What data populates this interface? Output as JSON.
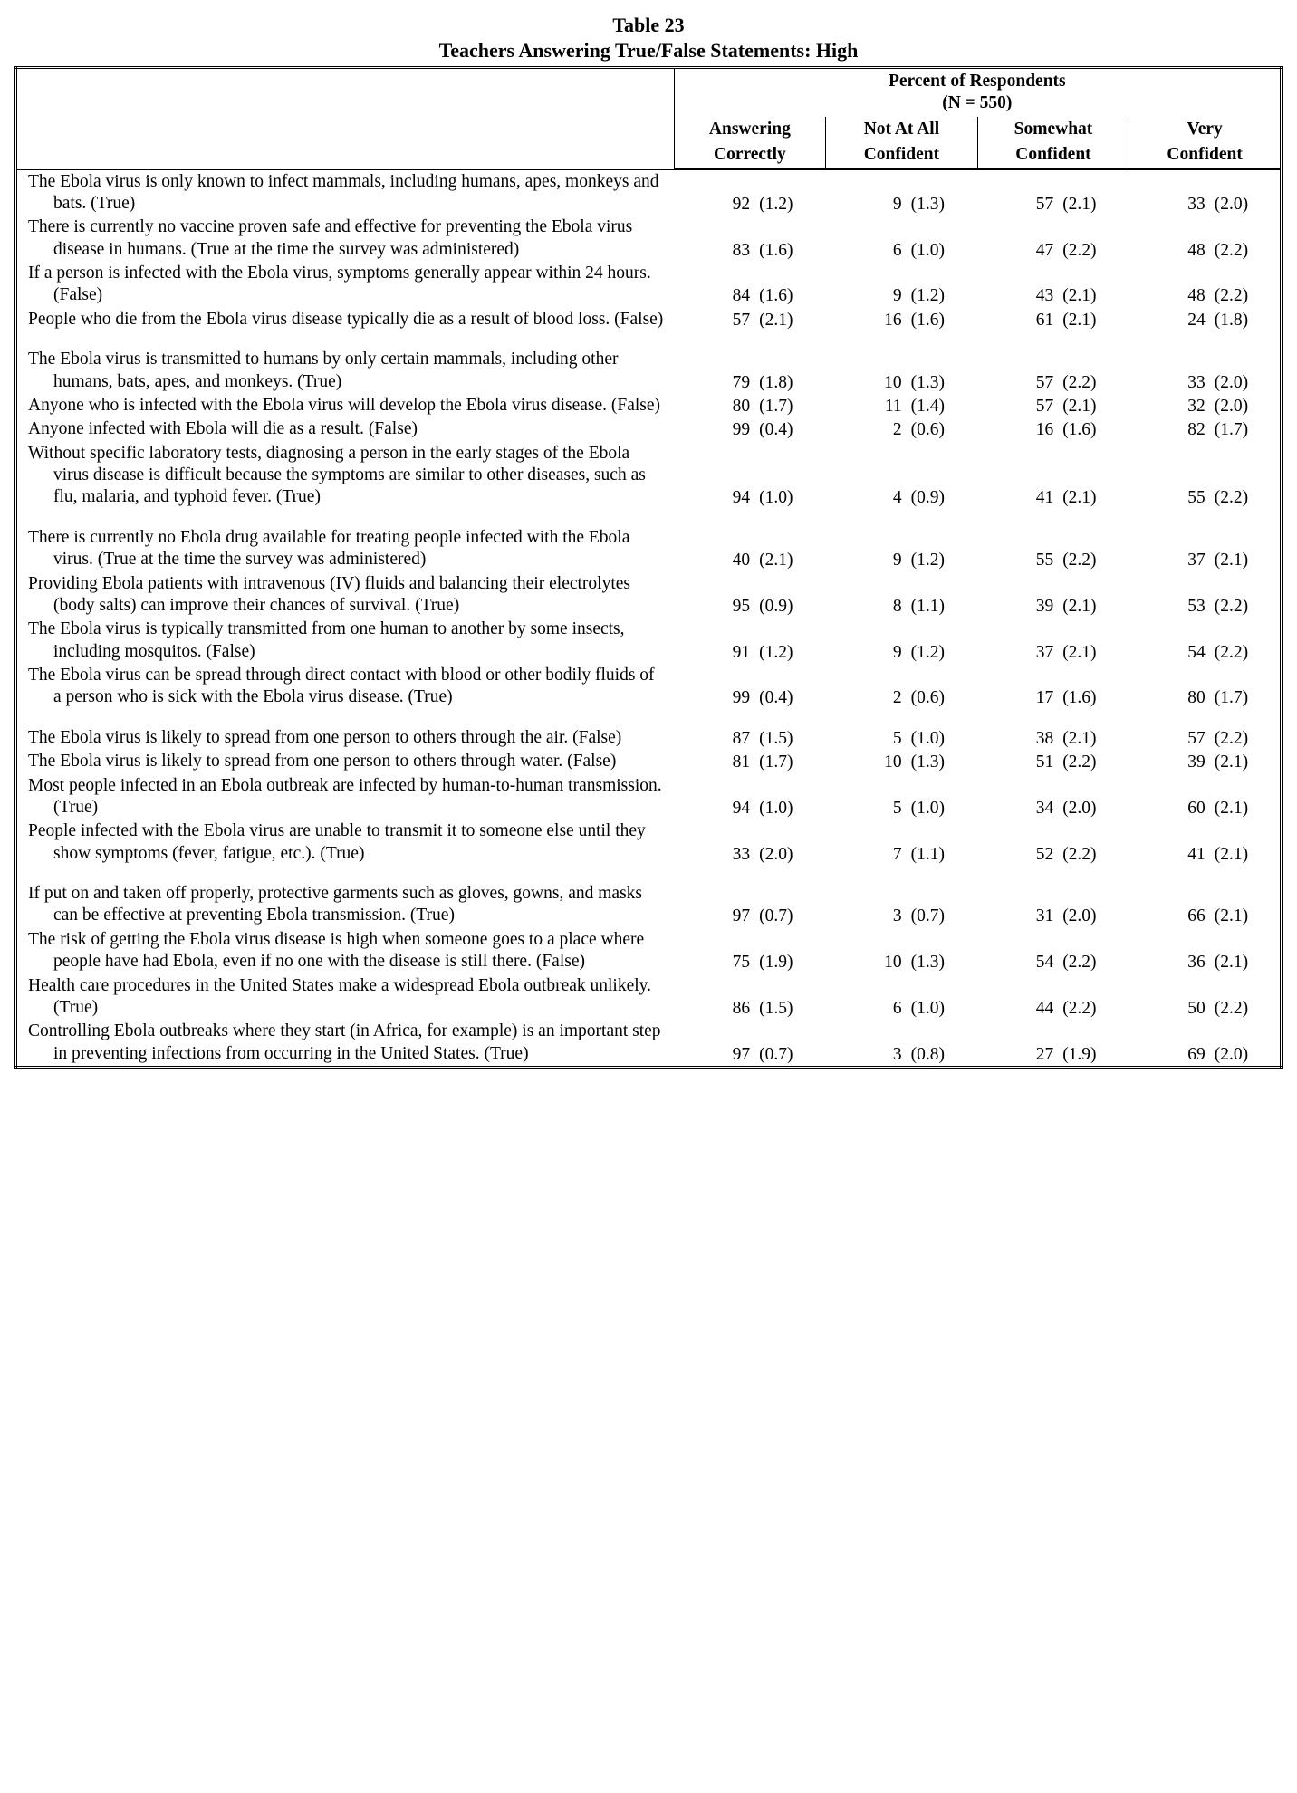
{
  "table_number": "Table 23",
  "title": "Teachers Answering True/False Statements: High",
  "super_header": "Percent of Respondents",
  "n_label": "(N = 550)",
  "columns": [
    {
      "l1": "Answering",
      "l2": "Correctly"
    },
    {
      "l1": "Not At All",
      "l2": "Confident"
    },
    {
      "l1": "Somewhat",
      "l2": "Confident"
    },
    {
      "l1": "Very",
      "l2": "Confident"
    }
  ],
  "groups": [
    [
      {
        "stmt": "The Ebola virus is only known to infect mammals, including humans, apes, monkeys and bats.  (True)",
        "vals": [
          {
            "v": "92",
            "se": "(1.2)"
          },
          {
            "v": "9",
            "se": "(1.3)"
          },
          {
            "v": "57",
            "se": "(2.1)"
          },
          {
            "v": "33",
            "se": "(2.0)"
          }
        ]
      },
      {
        "stmt": "There is currently no vaccine proven safe and effective for preventing the Ebola virus disease in humans.  (True at the time the survey was administered)",
        "vals": [
          {
            "v": "83",
            "se": "(1.6)"
          },
          {
            "v": "6",
            "se": "(1.0)"
          },
          {
            "v": "47",
            "se": "(2.2)"
          },
          {
            "v": "48",
            "se": "(2.2)"
          }
        ]
      },
      {
        "stmt": "If a person is infected with the Ebola virus, symptoms generally appear within 24 hours.  (False)",
        "vals": [
          {
            "v": "84",
            "se": "(1.6)"
          },
          {
            "v": "9",
            "se": "(1.2)"
          },
          {
            "v": "43",
            "se": "(2.1)"
          },
          {
            "v": "48",
            "se": "(2.2)"
          }
        ]
      },
      {
        "stmt": "People who die from the Ebola virus disease typically die as a result of blood loss.  (False)",
        "vals": [
          {
            "v": "57",
            "se": "(2.1)"
          },
          {
            "v": "16",
            "se": "(1.6)"
          },
          {
            "v": "61",
            "se": "(2.1)"
          },
          {
            "v": "24",
            "se": "(1.8)"
          }
        ]
      }
    ],
    [
      {
        "stmt": "The Ebola virus is transmitted to humans by only certain mammals, including other humans, bats, apes, and monkeys.  (True)",
        "vals": [
          {
            "v": "79",
            "se": "(1.8)"
          },
          {
            "v": "10",
            "se": "(1.3)"
          },
          {
            "v": "57",
            "se": "(2.2)"
          },
          {
            "v": "33",
            "se": "(2.0)"
          }
        ]
      },
      {
        "stmt": "Anyone who is infected with the Ebola virus will develop the Ebola virus disease.  (False)",
        "vals": [
          {
            "v": "80",
            "se": "(1.7)"
          },
          {
            "v": "11",
            "se": "(1.4)"
          },
          {
            "v": "57",
            "se": "(2.1)"
          },
          {
            "v": "32",
            "se": "(2.0)"
          }
        ]
      },
      {
        "stmt": "Anyone infected with Ebola will die as a result.  (False)",
        "vals": [
          {
            "v": "99",
            "se": "(0.4)"
          },
          {
            "v": "2",
            "se": "(0.6)"
          },
          {
            "v": "16",
            "se": "(1.6)"
          },
          {
            "v": "82",
            "se": "(1.7)"
          }
        ]
      },
      {
        "stmt": "Without specific laboratory tests, diagnosing a person in the early stages of the Ebola virus disease is difficult because the symptoms are similar to other diseases, such as flu, malaria, and typhoid fever.  (True)",
        "vals": [
          {
            "v": "94",
            "se": "(1.0)"
          },
          {
            "v": "4",
            "se": "(0.9)"
          },
          {
            "v": "41",
            "se": "(2.1)"
          },
          {
            "v": "55",
            "se": "(2.2)"
          }
        ]
      }
    ],
    [
      {
        "stmt": "There is currently no Ebola drug available for treating people infected with the Ebola virus.  (True at the time the survey was administered)",
        "vals": [
          {
            "v": "40",
            "se": "(2.1)"
          },
          {
            "v": "9",
            "se": "(1.2)"
          },
          {
            "v": "55",
            "se": "(2.2)"
          },
          {
            "v": "37",
            "se": "(2.1)"
          }
        ]
      },
      {
        "stmt": "Providing Ebola patients with intravenous (IV) fluids and balancing their electrolytes (body salts) can improve their chances of survival.  (True)",
        "vals": [
          {
            "v": "95",
            "se": "(0.9)"
          },
          {
            "v": "8",
            "se": "(1.1)"
          },
          {
            "v": "39",
            "se": "(2.1)"
          },
          {
            "v": "53",
            "se": "(2.2)"
          }
        ]
      },
      {
        "stmt": "The Ebola virus is typically transmitted from one human to another by some insects, including mosquitos.  (False)",
        "vals": [
          {
            "v": "91",
            "se": "(1.2)"
          },
          {
            "v": "9",
            "se": "(1.2)"
          },
          {
            "v": "37",
            "se": "(2.1)"
          },
          {
            "v": "54",
            "se": "(2.2)"
          }
        ]
      },
      {
        "stmt": "The Ebola virus can be spread through direct contact with blood or other bodily fluids of a person who is sick with the Ebola virus disease.  (True)",
        "vals": [
          {
            "v": "99",
            "se": "(0.4)"
          },
          {
            "v": "2",
            "se": "(0.6)"
          },
          {
            "v": "17",
            "se": "(1.6)"
          },
          {
            "v": "80",
            "se": "(1.7)"
          }
        ]
      }
    ],
    [
      {
        "stmt": "The Ebola virus is likely to spread from one person to others through the air.  (False)",
        "vals": [
          {
            "v": "87",
            "se": "(1.5)"
          },
          {
            "v": "5",
            "se": "(1.0)"
          },
          {
            "v": "38",
            "se": "(2.1)"
          },
          {
            "v": "57",
            "se": "(2.2)"
          }
        ]
      },
      {
        "stmt": "The Ebola virus is likely to spread from one person to others through water.  (False)",
        "vals": [
          {
            "v": "81",
            "se": "(1.7)"
          },
          {
            "v": "10",
            "se": "(1.3)"
          },
          {
            "v": "51",
            "se": "(2.2)"
          },
          {
            "v": "39",
            "se": "(2.1)"
          }
        ]
      },
      {
        "stmt": "Most people infected in an Ebola outbreak are infected by human-to-human transmission.  (True)",
        "vals": [
          {
            "v": "94",
            "se": "(1.0)"
          },
          {
            "v": "5",
            "se": "(1.0)"
          },
          {
            "v": "34",
            "se": "(2.0)"
          },
          {
            "v": "60",
            "se": "(2.1)"
          }
        ]
      },
      {
        "stmt": "People infected with the Ebola virus are unable to transmit it to someone else until they show symptoms (fever, fatigue, etc.).  (True)",
        "vals": [
          {
            "v": "33",
            "se": "(2.0)"
          },
          {
            "v": "7",
            "se": "(1.1)"
          },
          {
            "v": "52",
            "se": "(2.2)"
          },
          {
            "v": "41",
            "se": "(2.1)"
          }
        ]
      }
    ],
    [
      {
        "stmt": "If put on and taken off properly, protective garments such as gloves, gowns, and masks can be effective at preventing Ebola transmission.  (True)",
        "vals": [
          {
            "v": "97",
            "se": "(0.7)"
          },
          {
            "v": "3",
            "se": "(0.7)"
          },
          {
            "v": "31",
            "se": "(2.0)"
          },
          {
            "v": "66",
            "se": "(2.1)"
          }
        ]
      },
      {
        "stmt": "The risk of getting the Ebola virus disease is high when someone goes to a place where people have had Ebola, even if no one with the disease is still there.  (False)",
        "vals": [
          {
            "v": "75",
            "se": "(1.9)"
          },
          {
            "v": "10",
            "se": "(1.3)"
          },
          {
            "v": "54",
            "se": "(2.2)"
          },
          {
            "v": "36",
            "se": "(2.1)"
          }
        ]
      },
      {
        "stmt": "Health care procedures in the United States make a widespread Ebola outbreak unlikely.  (True)",
        "vals": [
          {
            "v": "86",
            "se": "(1.5)"
          },
          {
            "v": "6",
            "se": "(1.0)"
          },
          {
            "v": "44",
            "se": "(2.2)"
          },
          {
            "v": "50",
            "se": "(2.2)"
          }
        ]
      },
      {
        "stmt": "Controlling Ebola outbreaks where they start (in Africa, for example) is an important step in preventing infections from occurring in the United States.  (True)",
        "vals": [
          {
            "v": "97",
            "se": "(0.7)"
          },
          {
            "v": "3",
            "se": "(0.8)"
          },
          {
            "v": "27",
            "se": "(1.9)"
          },
          {
            "v": "69",
            "se": "(2.0)"
          }
        ]
      }
    ]
  ]
}
